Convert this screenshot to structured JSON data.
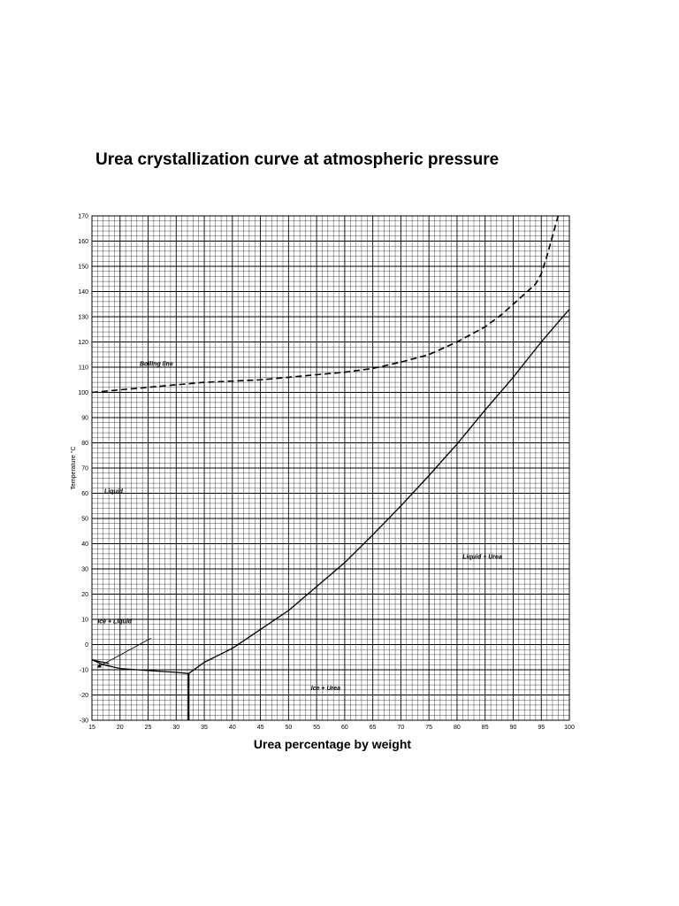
{
  "chart_data": {
    "type": "line",
    "title": "Urea crystallization curve at atmospheric pressure",
    "xlabel": "Urea percentage by weight",
    "ylabel": "Temperature °C",
    "xlim": [
      15,
      100
    ],
    "ylim": [
      -30,
      170
    ],
    "x_ticks": [
      "15",
      "20",
      "25",
      "30",
      "35",
      "40",
      "45",
      "50",
      "55",
      "60",
      "65",
      "70",
      "75",
      "80",
      "85",
      "90",
      "95",
      "100"
    ],
    "y_ticks": [
      "-30",
      "-20",
      "-10",
      "0",
      "10",
      "20",
      "30",
      "40",
      "50",
      "60",
      "70",
      "80",
      "90",
      "100",
      "110",
      "120",
      "130",
      "140",
      "150",
      "160",
      "170"
    ],
    "grid": true,
    "series": [
      {
        "style": "dashed",
        "x": [
          15,
          20,
          25,
          30,
          35,
          40,
          45,
          50,
          55,
          60,
          65,
          70,
          75,
          80,
          85,
          88,
          90,
          92,
          94,
          95,
          96,
          97,
          98
        ],
        "y": [
          100,
          101,
          102,
          103,
          104,
          104.5,
          105,
          106,
          107,
          108,
          109.5,
          112,
          115,
          120,
          126,
          131,
          135,
          139,
          143,
          147,
          154,
          162,
          170
        ]
      },
      {
        "style": "solid",
        "x": [
          32.2,
          35,
          40,
          45,
          50,
          55,
          60,
          65,
          70,
          75,
          80,
          85,
          90,
          95,
          100
        ],
        "y": [
          -11.5,
          -7,
          -1.5,
          6,
          13.5,
          23,
          32.5,
          43.5,
          55,
          67,
          79.5,
          93,
          106,
          120,
          133
        ]
      },
      {
        "style": "solid",
        "x": [
          15,
          17,
          20,
          25,
          30,
          32.2
        ],
        "y": [
          -6,
          -8,
          -9.5,
          -10.3,
          -11,
          -11.5
        ]
      },
      {
        "style": "solid",
        "x": [
          15,
          16.5,
          18
        ],
        "y": [
          -6,
          -6.8,
          -7.5
        ]
      },
      {
        "style": "solid-bold",
        "x": [
          32.2,
          32.2
        ],
        "y": [
          -11.5,
          -30
        ]
      }
    ],
    "annotations": [
      {
        "text": "Boiling line",
        "x": 23.5,
        "y": 110.5
      },
      {
        "text": "Liquid",
        "x": 17.2,
        "y": 60
      },
      {
        "text": "Liquid + Urea",
        "x": 81,
        "y": 34
      },
      {
        "text": "Ice + Liquid",
        "x": 16,
        "y": 8.5
      },
      {
        "text": "Ice + Urea",
        "x": 54,
        "y": -18
      }
    ],
    "arrows": [
      {
        "from": [
          25.5,
          2.5
        ],
        "to": [
          16,
          -9
        ]
      }
    ]
  }
}
